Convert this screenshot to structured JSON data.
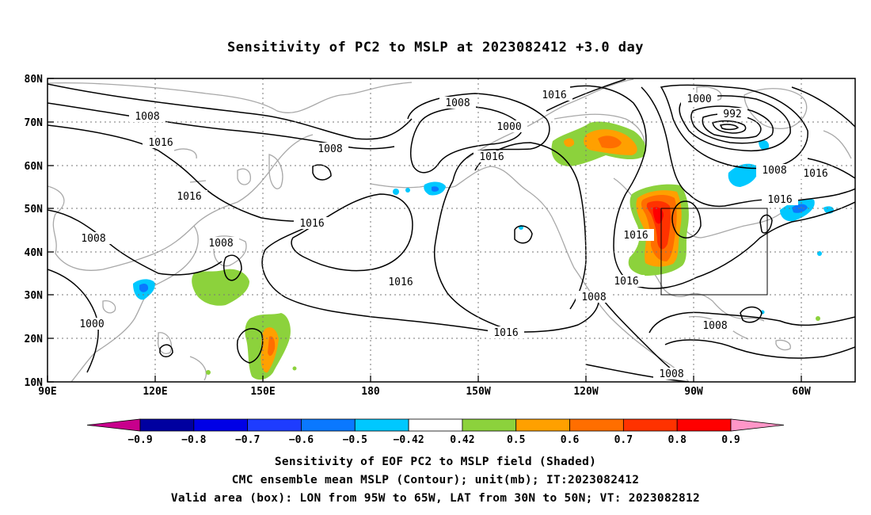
{
  "title": "Sensitivity of PC2 to MSLP at 2023082412 +3.0 day",
  "lat_labels": [
    "80N",
    "70N",
    "60N",
    "50N",
    "40N",
    "30N",
    "20N",
    "10N"
  ],
  "lon_labels": [
    "90E",
    "120E",
    "150E",
    "180",
    "150W",
    "120W",
    "90W",
    "60W"
  ],
  "colorbar": {
    "labels": [
      "−0.9",
      "−0.8",
      "−0.7",
      "−0.6",
      "−0.5",
      "−0.42",
      "0.42",
      "0.5",
      "0.6",
      "0.7",
      "0.8",
      "0.9"
    ],
    "colors": [
      "#c8008c",
      "#0000a0",
      "#0000e6",
      "#1e3cff",
      "#0a78ff",
      "#00c8ff",
      "#ffffff",
      "#8cd23c",
      "#ffa000",
      "#ff6e00",
      "#ff3200",
      "#ff0000",
      "#ff96c8"
    ]
  },
  "contour_labels": {
    "l1": "1008",
    "l2": "1016",
    "l3": "1016",
    "l4": "1008",
    "l5": "1008",
    "l6": "1000",
    "l7": "1008",
    "l8": "1000",
    "l9": "1016",
    "l10": "1008",
    "l11": "1016",
    "l12": "1016",
    "l13": "1000",
    "l14": "992",
    "l15": "1008",
    "l16": "1016",
    "l17": "1016",
    "l18": "1016",
    "l19": "1016",
    "l20": "1008",
    "l21": "1008",
    "l22": "1008",
    "l23": "1016",
    "l24": "1016"
  },
  "caption": {
    "line1": "Sensitivity of EOF PC2 to MSLP field (Shaded)",
    "line2": "CMC ensemble mean MSLP (Contour); unit(mb); IT:2023082412",
    "line3": "Valid area (box): LON from 95W to 65W, LAT from 30N to 50N; VT: 2023082812"
  }
}
